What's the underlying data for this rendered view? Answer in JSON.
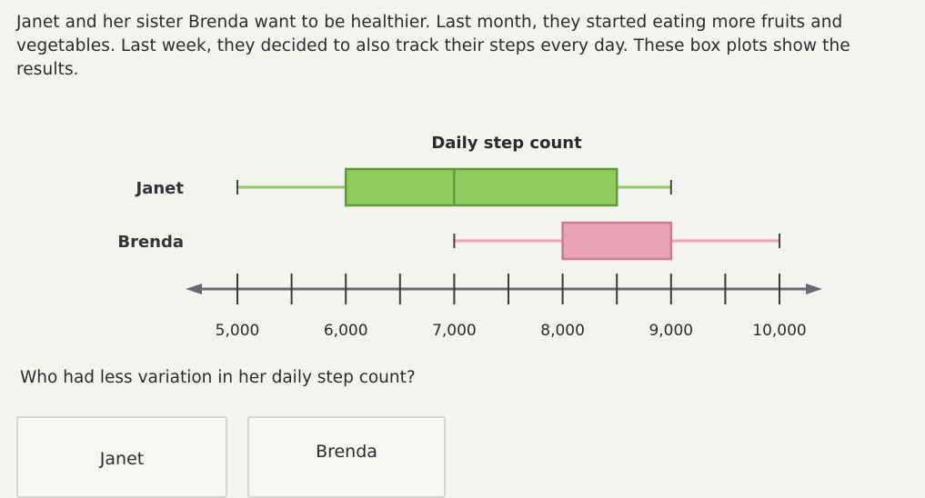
{
  "intro_text": "Janet and her sister Brenda want to be healthier. Last month, they started eating more fruits and vegetables. Last week, they decided to also track their steps every day. These box plots show the results.",
  "question_text": "Who had less variation in her daily step count?",
  "choices": [
    {
      "label": "Janet"
    },
    {
      "label": "Brenda"
    }
  ],
  "chart_data": {
    "type": "boxplot",
    "title": "Daily step count",
    "xlabel": "",
    "ylabel": "",
    "xlim": [
      4500,
      10600
    ],
    "ticks": [
      5000,
      5500,
      6000,
      6500,
      7000,
      7500,
      8000,
      8500,
      9000,
      9500,
      10000
    ],
    "tick_labels": [
      "5,000",
      "6,000",
      "7,000",
      "8,000",
      "9,000",
      "10,000"
    ],
    "labeled_ticks": [
      5000,
      6000,
      7000,
      8000,
      9000,
      10000
    ],
    "grid": false,
    "series": [
      {
        "name": "Janet",
        "min": 5000,
        "q1": 6000,
        "median": 7000,
        "q3": 8500,
        "max": 9000,
        "color": "#8fcb5f",
        "stroke": "#5e9a3a"
      },
      {
        "name": "Brenda",
        "min": 7000,
        "q1": 8000,
        "median": 8000,
        "q3": 9000,
        "max": 10000,
        "color": "#eba2b6",
        "stroke": "#cc7d92"
      }
    ]
  }
}
